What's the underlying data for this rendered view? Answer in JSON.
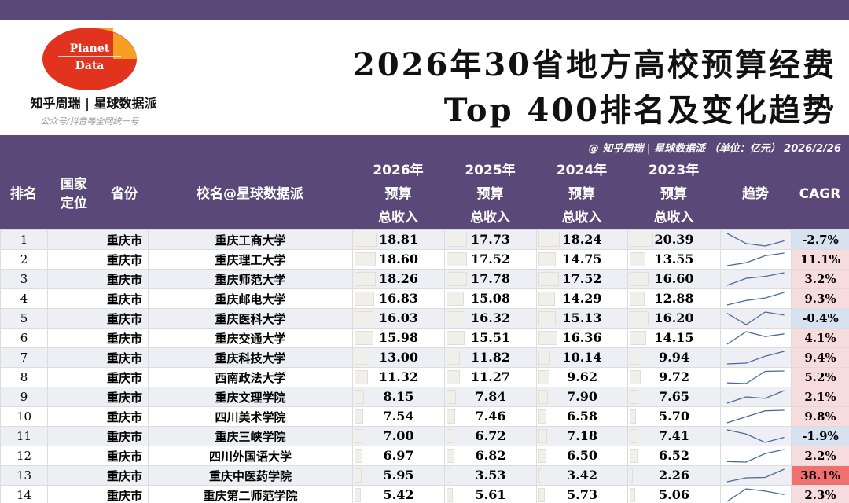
{
  "logo": {
    "line1": "Planet",
    "line2": "Data",
    "colors": {
      "red": "#e2331f",
      "orange": "#f5a623"
    }
  },
  "brand": "知乎周瑞 | 星球数据派",
  "tagline": "公众号/抖音等全网统一号",
  "title": {
    "line1": "2026年30省地方高校预算经费",
    "line2": "Top 400排名及变化趋势"
  },
  "subbar": "@ 知乎周瑞 | 星球数据派 （单位：亿元） 2026/2/26",
  "colors": {
    "header_bg": "#5a4978",
    "cagr_pos": "#f6dcdc",
    "cagr_neg": "#d6e2f0",
    "cagr_strong": "#f07070",
    "trend_line": "#4a6a9a"
  },
  "headers": {
    "rank": "排名",
    "national": [
      "国家",
      "定位"
    ],
    "province": "省份",
    "school": "校名@星球数据派",
    "y2026": [
      "2026年",
      "预算",
      "总收入"
    ],
    "y2025": [
      "2025年",
      "预算",
      "总收入"
    ],
    "y2024": [
      "2024年",
      "预算",
      "总收入"
    ],
    "y2023": [
      "2023年",
      "预算",
      "总收入"
    ],
    "trend": "趋势",
    "cagr": "CAGR"
  },
  "rows": [
    {
      "rank": "1",
      "national": "",
      "province": "重庆市",
      "school": "重庆工商大学",
      "v2026": "18.81",
      "v2025": "17.73",
      "v2024": "18.24",
      "v2023": "20.39",
      "cagr": "-2.7%"
    },
    {
      "rank": "2",
      "national": "",
      "province": "重庆市",
      "school": "重庆理工大学",
      "v2026": "18.60",
      "v2025": "17.52",
      "v2024": "14.75",
      "v2023": "13.55",
      "cagr": "11.1%"
    },
    {
      "rank": "3",
      "national": "",
      "province": "重庆市",
      "school": "重庆师范大学",
      "v2026": "18.26",
      "v2025": "17.78",
      "v2024": "17.52",
      "v2023": "16.60",
      "cagr": "3.2%"
    },
    {
      "rank": "4",
      "national": "",
      "province": "重庆市",
      "school": "重庆邮电大学",
      "v2026": "16.83",
      "v2025": "15.08",
      "v2024": "14.29",
      "v2023": "12.88",
      "cagr": "9.3%"
    },
    {
      "rank": "5",
      "national": "",
      "province": "重庆市",
      "school": "重庆医科大学",
      "v2026": "16.03",
      "v2025": "16.32",
      "v2024": "15.13",
      "v2023": "16.20",
      "cagr": "-0.4%"
    },
    {
      "rank": "6",
      "national": "",
      "province": "重庆市",
      "school": "重庆交通大学",
      "v2026": "15.98",
      "v2025": "15.51",
      "v2024": "16.36",
      "v2023": "14.15",
      "cagr": "4.1%"
    },
    {
      "rank": "7",
      "national": "",
      "province": "重庆市",
      "school": "重庆科技大学",
      "v2026": "13.00",
      "v2025": "11.82",
      "v2024": "10.14",
      "v2023": "9.94",
      "cagr": "9.4%"
    },
    {
      "rank": "8",
      "national": "",
      "province": "重庆市",
      "school": "西南政法大学",
      "v2026": "11.32",
      "v2025": "11.27",
      "v2024": "9.62",
      "v2023": "9.72",
      "cagr": "5.2%"
    },
    {
      "rank": "9",
      "national": "",
      "province": "重庆市",
      "school": "重庆文理学院",
      "v2026": "8.15",
      "v2025": "7.84",
      "v2024": "7.90",
      "v2023": "7.65",
      "cagr": "2.1%"
    },
    {
      "rank": "10",
      "national": "",
      "province": "重庆市",
      "school": "四川美术学院",
      "v2026": "7.54",
      "v2025": "7.46",
      "v2024": "6.58",
      "v2023": "5.70",
      "cagr": "9.8%"
    },
    {
      "rank": "11",
      "national": "",
      "province": "重庆市",
      "school": "重庆三峡学院",
      "v2026": "7.00",
      "v2025": "6.72",
      "v2024": "7.18",
      "v2023": "7.41",
      "cagr": "-1.9%"
    },
    {
      "rank": "12",
      "national": "",
      "province": "重庆市",
      "school": "四川外国语大学",
      "v2026": "6.97",
      "v2025": "6.82",
      "v2024": "6.50",
      "v2023": "6.52",
      "cagr": "2.2%"
    },
    {
      "rank": "13",
      "national": "",
      "province": "重庆市",
      "school": "重庆中医药学院",
      "v2026": "5.95",
      "v2025": "3.53",
      "v2024": "3.42",
      "v2023": "2.26",
      "cagr": "38.1%"
    },
    {
      "rank": "14",
      "national": "",
      "province": "重庆市",
      "school": "重庆第二师范学院",
      "v2026": "5.42",
      "v2025": "5.61",
      "v2024": "5.73",
      "v2023": "5.06",
      "cagr": "2.3%"
    }
  ]
}
